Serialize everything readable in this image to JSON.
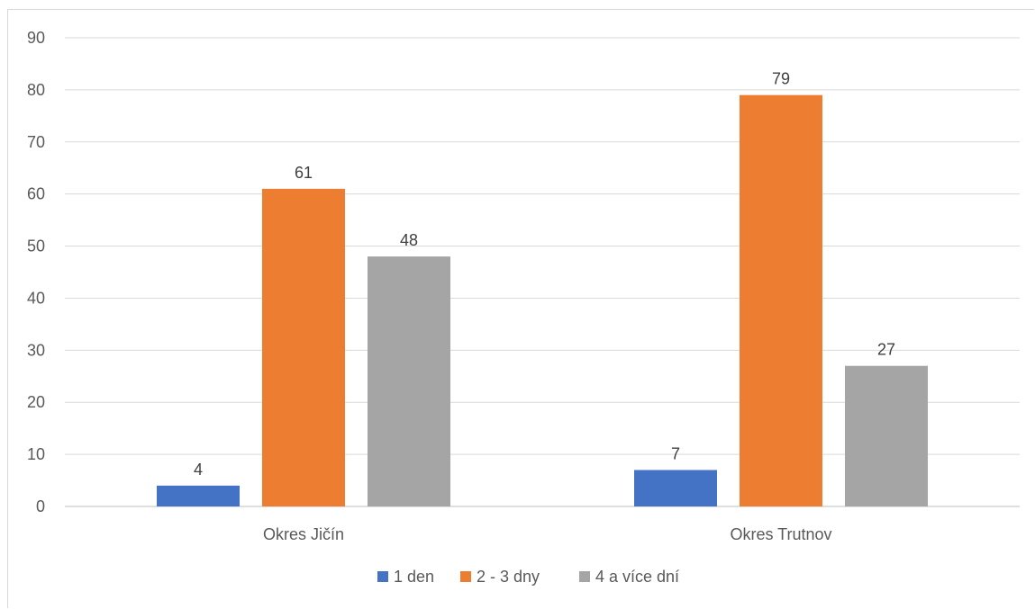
{
  "chart_data": {
    "type": "bar",
    "categories": [
      "Okres Jičín",
      "Okres Trutnov"
    ],
    "series": [
      {
        "name": "1 den",
        "values": [
          4,
          7
        ],
        "color": "#4472c4"
      },
      {
        "name": "2 - 3 dny",
        "values": [
          61,
          79
        ],
        "color": "#ed7d31"
      },
      {
        "name": "4 a více dní",
        "values": [
          48,
          27
        ],
        "color": "#a5a5a5"
      }
    ],
    "ylim": [
      0,
      90
    ],
    "yticks": [
      0,
      10,
      20,
      30,
      40,
      50,
      60,
      70,
      80,
      90
    ],
    "grid": true,
    "legend": "bottom",
    "data_labels": true,
    "title": "",
    "xlabel": "",
    "ylabel": ""
  }
}
